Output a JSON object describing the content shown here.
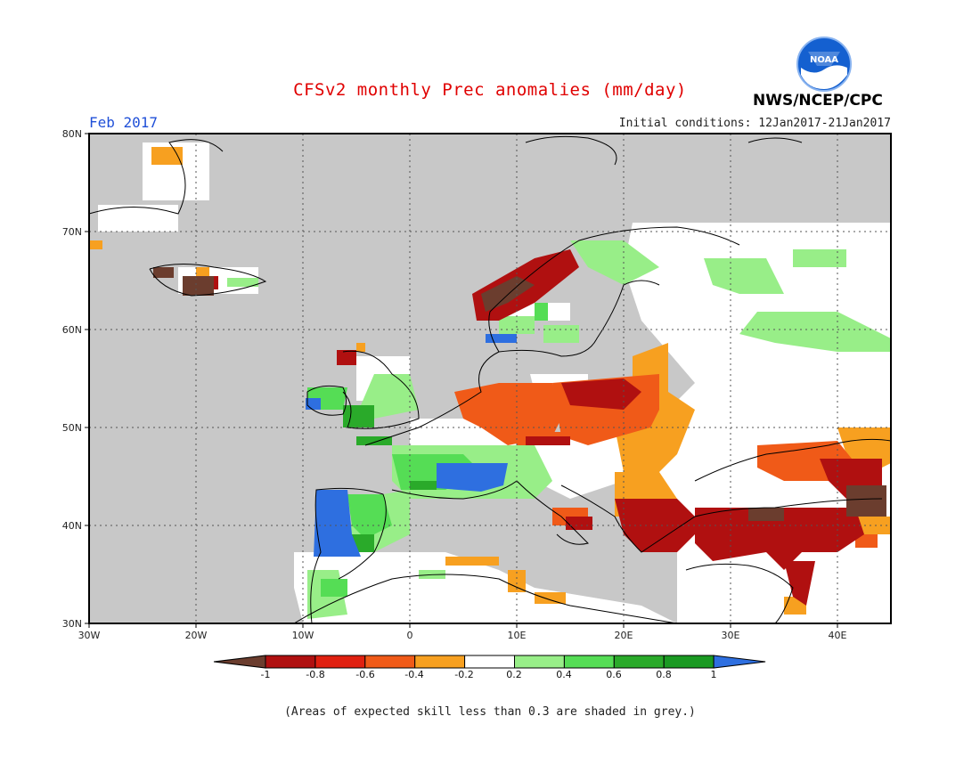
{
  "header": {
    "title": "CFSv2 monthly Prec anomalies (mm/day)",
    "month": "Feb 2017",
    "initial_conditions": "Initial conditions: 12Jan2017-21Jan2017",
    "agency": "NWS/NCEP/CPC",
    "logo_text": "NOAA"
  },
  "map": {
    "lat_labels": [
      "80N",
      "70N",
      "60N",
      "50N",
      "40N",
      "30N"
    ],
    "lon_labels": [
      "30W",
      "20W",
      "10W",
      "0",
      "10E",
      "20E",
      "30E",
      "40E"
    ],
    "lat_range": [
      30,
      80
    ],
    "lon_range": [
      -30,
      45
    ],
    "grid_lines": "dotted"
  },
  "colorbar": {
    "labels": [
      "-1",
      "-0.8",
      "-0.6",
      "-0.4",
      "-0.2",
      "0.2",
      "0.4",
      "0.6",
      "0.8",
      "1"
    ],
    "colors": [
      "#6b3d2e",
      "#b01010",
      "#e02010",
      "#f05a18",
      "#f7a020",
      "#ffffff",
      "#98ee88",
      "#55dd55",
      "#2aaa2a",
      "#1a9a22",
      "#2e6fe0"
    ]
  },
  "colors": {
    "skill_grey": "#c8c8c8",
    "no_signal": "#ffffff"
  },
  "footnote": "(Areas of expected skill less than 0.3 are shaded in grey.)"
}
